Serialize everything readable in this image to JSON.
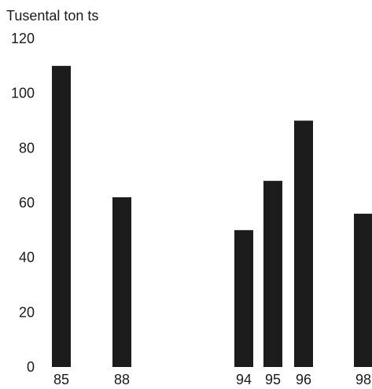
{
  "chart_data": {
    "type": "bar",
    "title": "",
    "xlabel": "",
    "ylabel": "Tusental ton ts",
    "categories": [
      "85",
      "88",
      "94",
      "95",
      "96",
      "98"
    ],
    "values": [
      110,
      62,
      50,
      68,
      90,
      56
    ],
    "ylim": [
      0,
      120
    ],
    "yticks": [
      "0",
      "20",
      "40",
      "60",
      "80",
      "100",
      "120"
    ],
    "grid": false,
    "legend": "none",
    "bar_color": "#1c1c1c",
    "text_color": "#1a1a1a"
  }
}
